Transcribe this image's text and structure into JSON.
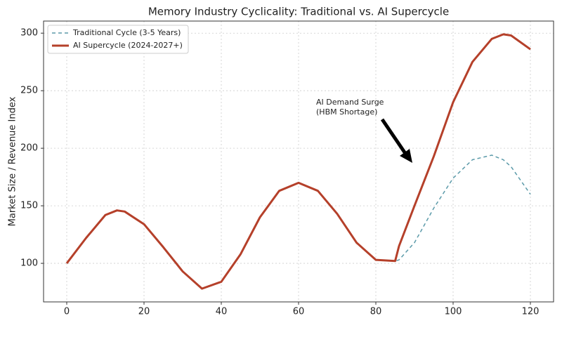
{
  "chart_data": {
    "type": "line",
    "title": "Memory Industry Cyclicality: Traditional vs. AI Supercycle",
    "y_label": "Market Size / Revenue Index",
    "annotation": [
      "AI Demand Surge",
      "(HBM Shortage)"
    ],
    "x": [
      0,
      5,
      10,
      13,
      15,
      20,
      25,
      30,
      35,
      40,
      45,
      50,
      55,
      60,
      65,
      70,
      75,
      80,
      85,
      86,
      90,
      95,
      100,
      105,
      110,
      113,
      115,
      120
    ],
    "series": [
      {
        "name": "Traditional Cycle (3-5 Years)",
        "color": "#5b9aa9",
        "dashed": true,
        "values": [
          100,
          122,
          142,
          146,
          145,
          134,
          114,
          93,
          78,
          84,
          108,
          140,
          163,
          170,
          163,
          143,
          118,
          103,
          102,
          103,
          118,
          148,
          174,
          190,
          194,
          190,
          184,
          160
        ]
      },
      {
        "name": "AI Supercycle (2024-2027+)",
        "color": "#b5402a",
        "dashed": false,
        "values": [
          100,
          122,
          142,
          146,
          145,
          134,
          114,
          93,
          78,
          84,
          108,
          140,
          163,
          170,
          163,
          143,
          118,
          103,
          102,
          115,
          150,
          193,
          240,
          275,
          295,
          299,
          298,
          286
        ]
      }
    ],
    "xlim": [
      -6,
      126
    ],
    "ylim": [
      66.5,
      310.5
    ],
    "xticks": [
      0,
      20,
      40,
      60,
      80,
      100,
      120
    ],
    "yticks": [
      100,
      150,
      200,
      250,
      300
    ],
    "grid": true,
    "legend": "upper left"
  }
}
